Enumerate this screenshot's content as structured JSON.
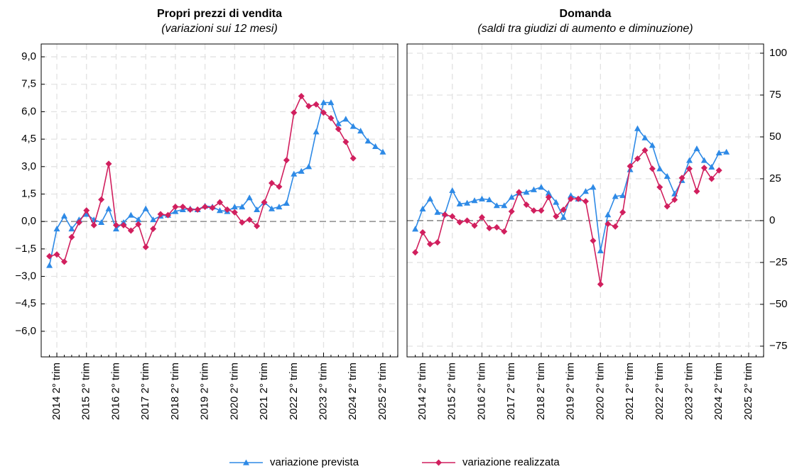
{
  "chart_data": [
    {
      "type": "line",
      "title": "Propri prezzi di vendita",
      "subtitle": "(variazioni sui 12 mesi)",
      "categories": [
        null,
        "2014 2° trim",
        null,
        null,
        null,
        "2015 2° trim",
        null,
        null,
        null,
        "2016 2° trim",
        null,
        null,
        null,
        "2017 2° trim",
        null,
        null,
        null,
        "2018 2° trim",
        null,
        null,
        null,
        "2019 2° trim",
        null,
        null,
        null,
        "2020 2° trim",
        null,
        null,
        null,
        "2021 2° trim",
        null,
        null,
        null,
        "2022 2° trim",
        null,
        null,
        null,
        "2023 2° trim",
        null,
        null,
        null,
        "2024 2° trim",
        null,
        null,
        null,
        "2025 2° trim",
        null,
        null
      ],
      "ylim": [
        -7.4,
        9.7
      ],
      "yticks": [
        {
          "value": 9,
          "label": "9,0"
        },
        {
          "value": 7.5,
          "label": "7,5"
        },
        {
          "value": 6,
          "label": "6,0"
        },
        {
          "value": 4.5,
          "label": "4,5"
        },
        {
          "value": 3,
          "label": "3,0"
        },
        {
          "value": 1.5,
          "label": "1,5"
        },
        {
          "value": 0,
          "label": "0,0"
        },
        {
          "value": -1.5,
          "label": "−1,5"
        },
        {
          "value": -3,
          "label": "−3,0"
        },
        {
          "value": -4.5,
          "label": "−4,5"
        },
        {
          "value": -6,
          "label": "−6,0"
        }
      ],
      "yaxis_position": "left",
      "grid": true,
      "series": [
        {
          "name": "variazione prevista",
          "color": "#2e8ae6",
          "marker": "triangle",
          "values": [
            -2.4,
            -0.4,
            0.3,
            -0.4,
            0.1,
            0.4,
            0.1,
            -0.05,
            0.7,
            -0.4,
            -0.05,
            0.35,
            0.1,
            0.7,
            0.1,
            0.3,
            0.35,
            0.55,
            0.65,
            0.7,
            0.65,
            0.85,
            0.8,
            0.6,
            0.55,
            0.8,
            0.8,
            1.3,
            0.65,
            1.05,
            0.7,
            0.8,
            1.0,
            2.6,
            2.75,
            3.0,
            4.9,
            6.5,
            6.5,
            5.35,
            5.6,
            5.2,
            4.95,
            4.4,
            4.1,
            3.8,
            null,
            null
          ]
        },
        {
          "name": "variazione realizzata",
          "color": "#d11f5e",
          "marker": "diamond",
          "values": [
            -1.9,
            -1.8,
            -2.2,
            -0.85,
            -0.05,
            0.6,
            -0.2,
            1.2,
            3.15,
            -0.2,
            -0.2,
            -0.5,
            -0.15,
            -1.4,
            -0.4,
            0.4,
            0.35,
            0.8,
            0.8,
            0.65,
            0.65,
            0.8,
            0.75,
            1.05,
            0.65,
            0.5,
            -0.05,
            0.1,
            -0.25,
            1.05,
            2.1,
            1.9,
            3.35,
            5.95,
            6.85,
            6.3,
            6.4,
            5.95,
            5.65,
            5.05,
            4.35,
            3.45,
            null,
            null,
            null,
            null,
            null,
            null
          ]
        }
      ]
    },
    {
      "type": "line",
      "title": "Domanda",
      "subtitle": "(saldi tra giudizi di aumento e diminuzione)",
      "categories": [
        null,
        "2014 2° trim",
        null,
        null,
        null,
        "2015 2° trim",
        null,
        null,
        null,
        "2016 2° trim",
        null,
        null,
        null,
        "2017 2° trim",
        null,
        null,
        null,
        "2018 2° trim",
        null,
        null,
        null,
        "2019 2° trim",
        null,
        null,
        null,
        "2020 2° trim",
        null,
        null,
        null,
        "2021 2° trim",
        null,
        null,
        null,
        "2022 2° trim",
        null,
        null,
        null,
        "2023 2° trim",
        null,
        null,
        null,
        "2024 2° trim",
        null,
        null,
        null,
        "2025 2° trim",
        null,
        null
      ],
      "ylim": [
        -81.4,
        105.5
      ],
      "yticks": [
        100,
        75,
        50,
        25,
        0,
        {
          "value": -25,
          "label": "−25"
        },
        {
          "value": -50,
          "label": "−50"
        },
        {
          "value": -75,
          "label": "−75"
        }
      ],
      "yaxis_position": "right",
      "grid": true,
      "series": [
        {
          "color": "#2e8ae6",
          "marker": "triangle",
          "values": [
            -5,
            7,
            13,
            5,
            4,
            18,
            10,
            10.5,
            12,
            13,
            12.5,
            9,
            9,
            14,
            16.5,
            17,
            18.5,
            20,
            16.5,
            11,
            2,
            15,
            13,
            17.5,
            20,
            -18,
            3.5,
            14.5,
            15,
            30.5,
            55,
            49.5,
            45,
            31,
            26.5,
            16,
            24,
            36,
            43,
            36,
            32,
            40.5,
            41,
            null,
            null,
            null,
            null,
            null
          ]
        },
        {
          "color": "#d11f5e",
          "marker": "diamond",
          "values": [
            -19,
            -7,
            -14,
            -13,
            3.5,
            2.5,
            -1,
            0,
            -3,
            2,
            -4.5,
            -4,
            -6.5,
            5.5,
            17,
            9.5,
            6,
            6,
            14,
            2.5,
            6.5,
            13,
            13,
            11.5,
            -12,
            -38,
            -2,
            -3.5,
            5,
            32.5,
            37,
            42,
            31,
            20,
            8.5,
            12.5,
            25.5,
            31,
            17.5,
            31.5,
            25,
            30,
            null,
            null,
            null,
            null,
            null,
            null
          ]
        }
      ]
    }
  ]
}
